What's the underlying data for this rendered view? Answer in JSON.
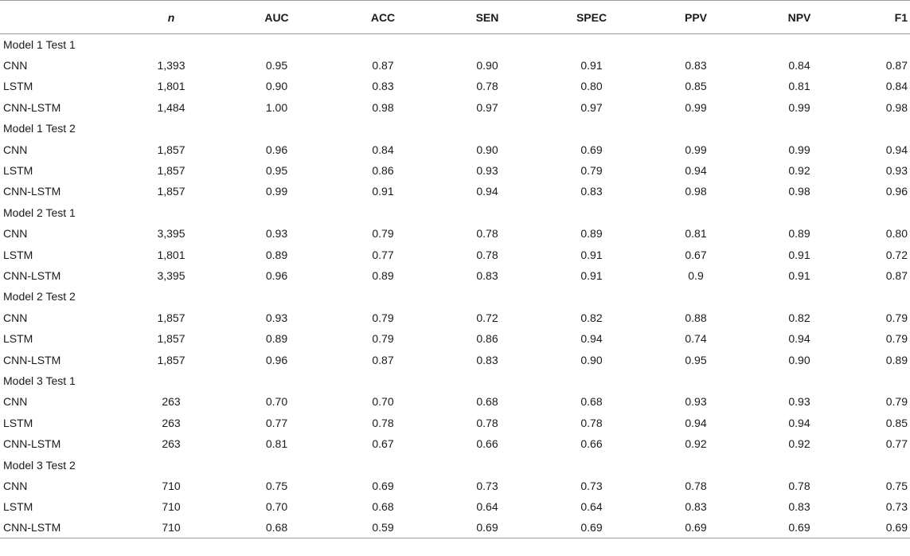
{
  "table": {
    "headers": [
      "",
      "n",
      "AUC",
      "ACC",
      "SEN",
      "SPEC",
      "PPV",
      "NPV",
      "F1"
    ],
    "groups": [
      {
        "title": "Model 1 Test 1",
        "rows": [
          {
            "label": "CNN",
            "n": "1,393",
            "AUC": "0.95",
            "ACC": "0.87",
            "SEN": "0.90",
            "SPEC": "0.91",
            "PPV": "0.83",
            "NPV": "0.84",
            "F1": "0.87"
          },
          {
            "label": "LSTM",
            "n": "1,801",
            "AUC": "0.90",
            "ACC": "0.83",
            "SEN": "0.78",
            "SPEC": "0.80",
            "PPV": "0.85",
            "NPV": "0.81",
            "F1": "0.84"
          },
          {
            "label": "CNN-LSTM",
            "n": "1,484",
            "AUC": "1.00",
            "ACC": "0.98",
            "SEN": "0.97",
            "SPEC": "0.97",
            "PPV": "0.99",
            "NPV": "0.99",
            "F1": "0.98"
          }
        ]
      },
      {
        "title": "Model 1 Test 2",
        "rows": [
          {
            "label": "CNN",
            "n": "1,857",
            "AUC": "0.96",
            "ACC": "0.84",
            "SEN": "0.90",
            "SPEC": "0.69",
            "PPV": "0.99",
            "NPV": "0.99",
            "F1": "0.94"
          },
          {
            "label": "LSTM",
            "n": "1,857",
            "AUC": "0.95",
            "ACC": "0.86",
            "SEN": "0.93",
            "SPEC": "0.79",
            "PPV": "0.94",
            "NPV": "0.92",
            "F1": "0.93"
          },
          {
            "label": "CNN-LSTM",
            "n": "1,857",
            "AUC": "0.99",
            "ACC": "0.91",
            "SEN": "0.94",
            "SPEC": "0.83",
            "PPV": "0.98",
            "NPV": "0.98",
            "F1": "0.96"
          }
        ]
      },
      {
        "title": "Model 2 Test 1",
        "rows": [
          {
            "label": "CNN",
            "n": "3,395",
            "AUC": "0.93",
            "ACC": "0.79",
            "SEN": "0.78",
            "SPEC": "0.89",
            "PPV": "0.81",
            "NPV": "0.89",
            "F1": "0.80"
          },
          {
            "label": "LSTM",
            "n": "1,801",
            "AUC": "0.89",
            "ACC": "0.77",
            "SEN": "0.78",
            "SPEC": "0.91",
            "PPV": "0.67",
            "NPV": "0.91",
            "F1": "0.72"
          },
          {
            "label": "CNN-LSTM",
            "n": "3,395",
            "AUC": "0.96",
            "ACC": "0.89",
            "SEN": "0.83",
            "SPEC": "0.91",
            "PPV": "0.9",
            "NPV": "0.91",
            "F1": "0.87"
          }
        ]
      },
      {
        "title": "Model 2 Test 2",
        "rows": [
          {
            "label": "CNN",
            "n": "1,857",
            "AUC": "0.93",
            "ACC": "0.79",
            "SEN": "0.72",
            "SPEC": "0.82",
            "PPV": "0.88",
            "NPV": "0.82",
            "F1": "0.79"
          },
          {
            "label": "LSTM",
            "n": "1,857",
            "AUC": "0.89",
            "ACC": "0.79",
            "SEN": "0.86",
            "SPEC": "0.94",
            "PPV": "0.74",
            "NPV": "0.94",
            "F1": "0.79"
          },
          {
            "label": "CNN-LSTM",
            "n": "1,857",
            "AUC": "0.96",
            "ACC": "0.87",
            "SEN": "0.83",
            "SPEC": "0.90",
            "PPV": "0.95",
            "NPV": "0.90",
            "F1": "0.89"
          }
        ]
      },
      {
        "title": "Model 3 Test 1",
        "rows": [
          {
            "label": "CNN",
            "n": "263",
            "AUC": "0.70",
            "ACC": "0.70",
            "SEN": "0.68",
            "SPEC": "0.68",
            "PPV": "0.93",
            "NPV": "0.93",
            "F1": "0.79"
          },
          {
            "label": "LSTM",
            "n": "263",
            "AUC": "0.77",
            "ACC": "0.78",
            "SEN": "0.78",
            "SPEC": "0.78",
            "PPV": "0.94",
            "NPV": "0.94",
            "F1": "0.85"
          },
          {
            "label": "CNN-LSTM",
            "n": "263",
            "AUC": "0.81",
            "ACC": "0.67",
            "SEN": "0.66",
            "SPEC": "0.66",
            "PPV": "0.92",
            "NPV": "0.92",
            "F1": "0.77"
          }
        ]
      },
      {
        "title": "Model 3 Test 2",
        "rows": [
          {
            "label": "CNN",
            "n": "710",
            "AUC": "0.75",
            "ACC": "0.69",
            "SEN": "0.73",
            "SPEC": "0.73",
            "PPV": "0.78",
            "NPV": "0.78",
            "F1": "0.75"
          },
          {
            "label": "LSTM",
            "n": "710",
            "AUC": "0.70",
            "ACC": "0.68",
            "SEN": "0.64",
            "SPEC": "0.64",
            "PPV": "0.83",
            "NPV": "0.83",
            "F1": "0.73"
          },
          {
            "label": "CNN-LSTM",
            "n": "710",
            "AUC": "0.68",
            "ACC": "0.59",
            "SEN": "0.69",
            "SPEC": "0.69",
            "PPV": "0.69",
            "NPV": "0.69",
            "F1": "0.69"
          }
        ]
      }
    ]
  }
}
